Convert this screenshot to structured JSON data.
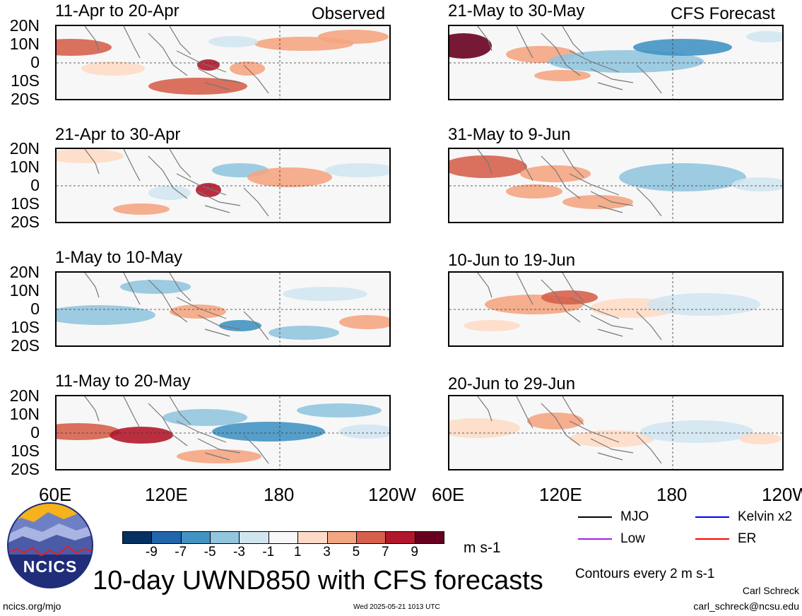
{
  "header": {
    "left_label": "Observed",
    "right_label": "CFS Forecast"
  },
  "panels": {
    "obs": [
      {
        "title": "11-Apr to 20-Apr"
      },
      {
        "title": "21-Apr to 30-Apr"
      },
      {
        "title": "1-May to 10-May"
      },
      {
        "title": "11-May to 20-May"
      }
    ],
    "fcst": [
      {
        "title": "21-May to 30-May"
      },
      {
        "title": "31-May to 9-Jun"
      },
      {
        "title": "10-Jun to 19-Jun"
      },
      {
        "title": "20-Jun to 29-Jun"
      }
    ]
  },
  "axes": {
    "lat_labels": [
      "20N",
      "10N",
      "0",
      "10S",
      "20S"
    ],
    "lon_labels_left": [
      "60E",
      "120E",
      "180",
      "120W"
    ],
    "lon_labels_right": [
      "60E",
      "120E",
      "180",
      "120W"
    ]
  },
  "colorbar": {
    "colors": [
      "#053061",
      "#2166ac",
      "#4393c3",
      "#92c5de",
      "#d1e5f0",
      "#f7f7f7",
      "#fddbc7",
      "#f4a582",
      "#d6604d",
      "#b2182b",
      "#67001f"
    ],
    "ticks": [
      "-9",
      "-7",
      "-5",
      "-3",
      "-1",
      "1",
      "3",
      "5",
      "7",
      "9"
    ],
    "units": "m s-1"
  },
  "legend": {
    "items": [
      {
        "label": "MJO",
        "color": "#000000"
      },
      {
        "label": "Kelvin x2",
        "color": "#0000ff"
      },
      {
        "label": "Low",
        "color": "#a020f0"
      },
      {
        "label": "ER",
        "color": "#ff0000"
      }
    ],
    "contour_note": "Contours every 2 m s-1"
  },
  "branding": {
    "logo_text": "NCICS",
    "main_title": "10-day UWND850 with CFS forecasts",
    "site": "ncics.org/mjo",
    "timestamp": "Wed 2025-05-21 1013 UTC",
    "author": "Carl Schreck",
    "email": "carl_schreck@ncsu.edu"
  }
}
